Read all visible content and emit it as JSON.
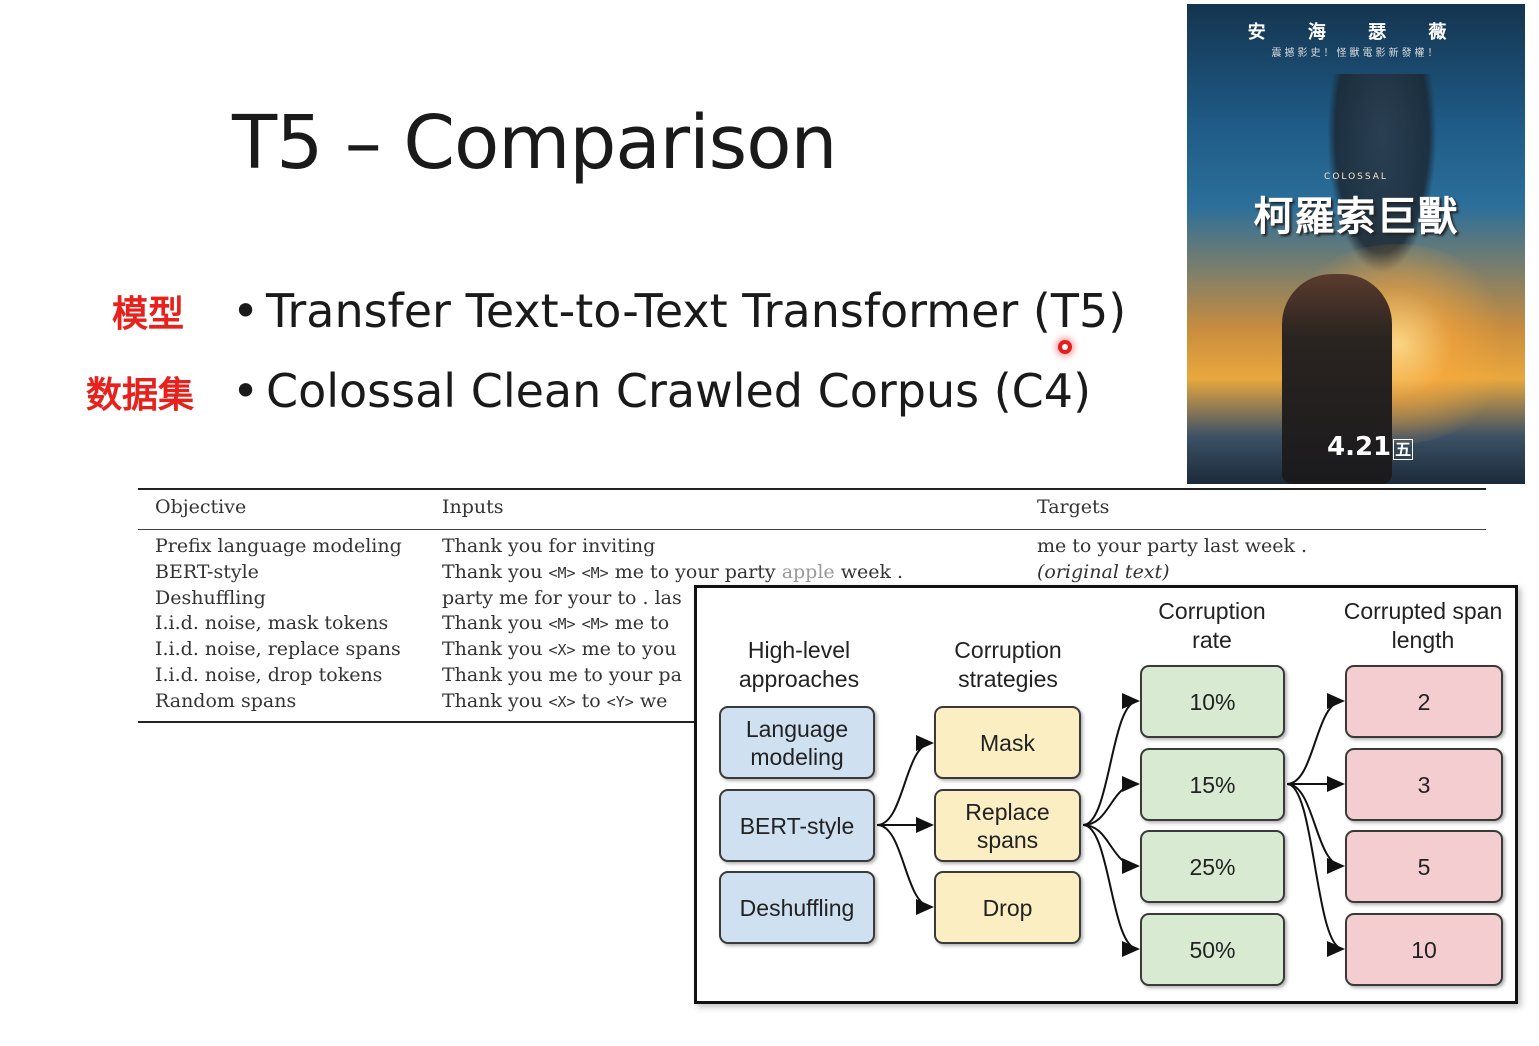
{
  "slide": {
    "title": "T5 – Comparison",
    "bullets": [
      {
        "tag": "模型",
        "text": "Transfer Text-to-Text Transformer (T5)"
      },
      {
        "tag": "数据集",
        "text": "Colossal Clean Crawled Corpus (C4)"
      }
    ]
  },
  "poster": {
    "top_line": "安 海 瑟 薇",
    "sub_line": "震撼影史！怪獸電影新發權！",
    "brand": "COLOSSAL",
    "title_cn": "柯羅索巨獸",
    "date": "4.21",
    "date_weekday": "五"
  },
  "table": {
    "headers": [
      "Objective",
      "Inputs",
      "Targets"
    ],
    "rows": [
      {
        "objective": "Prefix language modeling",
        "inputs": "Thank you for inviting",
        "targets": "me to your party last week ."
      },
      {
        "objective": "BERT-style",
        "inputs": "Thank you <M> <M> me to your party apple week .",
        "targets": "(original text)"
      },
      {
        "objective": "Deshuffling",
        "inputs": "party me for your to . las",
        "targets": ""
      },
      {
        "objective": "I.i.d. noise, mask tokens",
        "inputs": "Thank you <M> <M> me to",
        "targets": ""
      },
      {
        "objective": "I.i.d. noise, replace spans",
        "inputs": "Thank you <X> me to you",
        "targets": ""
      },
      {
        "objective": "I.i.d. noise, drop tokens",
        "inputs": "Thank you me to your pa",
        "targets": ""
      },
      {
        "objective": "Random spans",
        "inputs": "Thank you <X> to <Y> we",
        "targets": ""
      }
    ]
  },
  "diagram": {
    "columns": [
      {
        "header": "High-level approaches",
        "items": [
          "Language modeling",
          "BERT-style",
          "Deshuffling"
        ],
        "color": "#cfe0f0"
      },
      {
        "header": "Corruption strategies",
        "items": [
          "Mask",
          "Replace spans",
          "Drop"
        ],
        "color": "#fbeec3"
      },
      {
        "header": "Corruption rate",
        "items": [
          "10%",
          "15%",
          "25%",
          "50%"
        ],
        "color": "#d8ebd2"
      },
      {
        "header": "Corrupted span length",
        "items": [
          "2",
          "3",
          "5",
          "10"
        ],
        "color": "#f4cdd0"
      }
    ]
  }
}
